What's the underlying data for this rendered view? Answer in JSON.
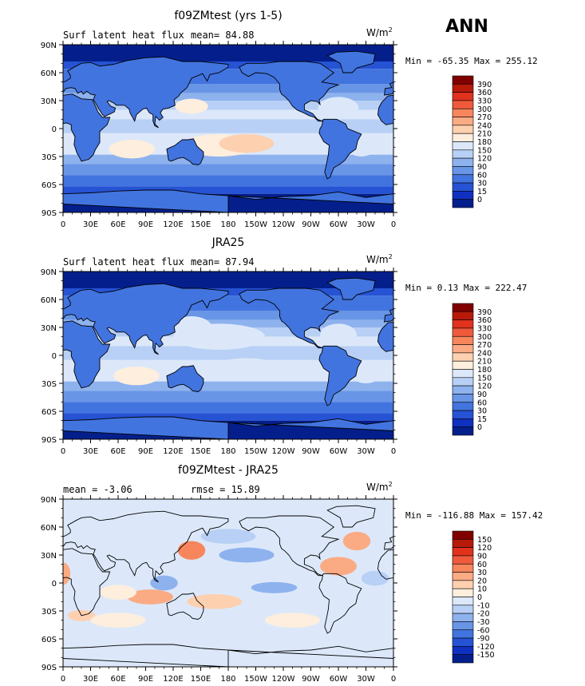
{
  "season": "ANN",
  "units": {
    "base": "W/m",
    "exp": "2"
  },
  "chart_data": [
    {
      "type": "heatmap",
      "title": "f09ZMtest (yrs 1-5)",
      "left_label": "Surf latent heat flux",
      "center_label": "mean=  84.88",
      "min_label": "Min = -65.35",
      "max_label": "Max = 255.12",
      "colorbar_levels": [
        "390",
        "360",
        "330",
        "300",
        "270",
        "240",
        "210",
        "180",
        "150",
        "120",
        "90",
        "60",
        "30",
        "15",
        "0"
      ],
      "x_tick_labels": [
        "0",
        "30E",
        "60E",
        "90E",
        "120E",
        "150E",
        "180",
        "150W",
        "120W",
        "90W",
        "60W",
        "30W",
        "0"
      ],
      "y_tick_labels": [
        "90N",
        "60N",
        "30N",
        "0",
        "30S",
        "60S",
        "90S"
      ]
    },
    {
      "type": "heatmap",
      "title": "JRA25",
      "left_label": "Surf latent heat flux",
      "center_label": "mean=  87.94",
      "min_label": "Min =   0.13",
      "max_label": "Max = 222.47",
      "colorbar_levels": [
        "390",
        "360",
        "330",
        "300",
        "270",
        "240",
        "210",
        "180",
        "150",
        "120",
        "90",
        "60",
        "30",
        "15",
        "0"
      ],
      "x_tick_labels": [
        "0",
        "30E",
        "60E",
        "90E",
        "120E",
        "150E",
        "180",
        "150W",
        "120W",
        "90W",
        "60W",
        "30W",
        "0"
      ],
      "y_tick_labels": [
        "90N",
        "60N",
        "30N",
        "0",
        "30S",
        "60S",
        "90S"
      ]
    },
    {
      "type": "heatmap",
      "title": "f09ZMtest - JRA25",
      "left_label": "mean =  -3.06",
      "center_label": "rmse =  15.89",
      "min_label": "Min = -116.88",
      "max_label": "Max = 157.42",
      "colorbar_levels": [
        "150",
        "120",
        "90",
        "60",
        "30",
        "20",
        "10",
        "0",
        "-10",
        "-20",
        "-30",
        "-60",
        "-90",
        "-120",
        "-150"
      ],
      "x_tick_labels": [
        "0",
        "30E",
        "60E",
        "90E",
        "120E",
        "150E",
        "180",
        "150W",
        "120W",
        "90W",
        "60W",
        "30W",
        "0"
      ],
      "y_tick_labels": [
        "90N",
        "60N",
        "30N",
        "0",
        "30S",
        "60S",
        "90S"
      ]
    }
  ],
  "colors": {
    "abs_scale": [
      "#800000",
      "#b81a0a",
      "#e0321c",
      "#f05a3c",
      "#f7865c",
      "#fbab84",
      "#fdd0b0",
      "#fdeedd",
      "#dce8fa",
      "#b8d0f5",
      "#8eb2ee",
      "#6895e6",
      "#4274df",
      "#2653d4",
      "#1030c0",
      "#041f8c"
    ],
    "diff_scale": [
      "#800000",
      "#b81a0a",
      "#e0321c",
      "#f05a3c",
      "#f7865c",
      "#fbab84",
      "#fdd0b0",
      "#fdeedd",
      "#dce8fa",
      "#b8d0f5",
      "#8eb2ee",
      "#6895e6",
      "#4274df",
      "#2653d4",
      "#1030c0",
      "#041f8c"
    ]
  }
}
